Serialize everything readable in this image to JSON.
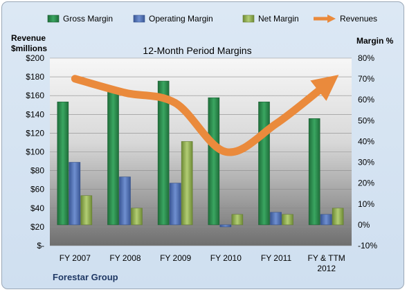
{
  "chart_data": {
    "type": "bar",
    "title": "12-Month Period Margins",
    "left_axis_title": [
      "Revenue",
      "$millions"
    ],
    "right_axis_title": "Margin %",
    "footer_label": "Forestar Group",
    "categories": [
      "FY 2007",
      "FY 2008",
      "FY 2009",
      "FY 2010",
      "FY 2011",
      "FY & TTM 2012"
    ],
    "left_axis": {
      "min": 0,
      "max": 200,
      "step": 20,
      "tick_labels": [
        "$-",
        "$20",
        "$40",
        "$60",
        "$80",
        "$100",
        "$120",
        "$140",
        "$160",
        "$180",
        "$200"
      ]
    },
    "right_axis": {
      "min": -10,
      "max": 80,
      "step": 10,
      "tick_labels": [
        "-10%",
        "0%",
        "10%",
        "20%",
        "30%",
        "40%",
        "50%",
        "60%",
        "70%",
        "80%"
      ]
    },
    "series": [
      {
        "name": "Gross Margin",
        "axis": "right",
        "color": "#2e8b4f",
        "values": [
          59,
          65,
          69,
          61,
          59,
          51
        ]
      },
      {
        "name": "Operating Margin",
        "axis": "right",
        "color": "#4f6fb5",
        "values": [
          30,
          23,
          20,
          -1,
          6,
          5
        ]
      },
      {
        "name": "Net Margin",
        "axis": "right",
        "color": "#8fae4f",
        "values": [
          14,
          8,
          40,
          5,
          5,
          8
        ]
      },
      {
        "name": "Revenues",
        "axis": "left",
        "type": "line",
        "color": "#ea8a3c",
        "values": [
          178,
          163,
          152,
          100,
          130,
          172
        ]
      }
    ],
    "legend_position": "top",
    "grid": true
  }
}
